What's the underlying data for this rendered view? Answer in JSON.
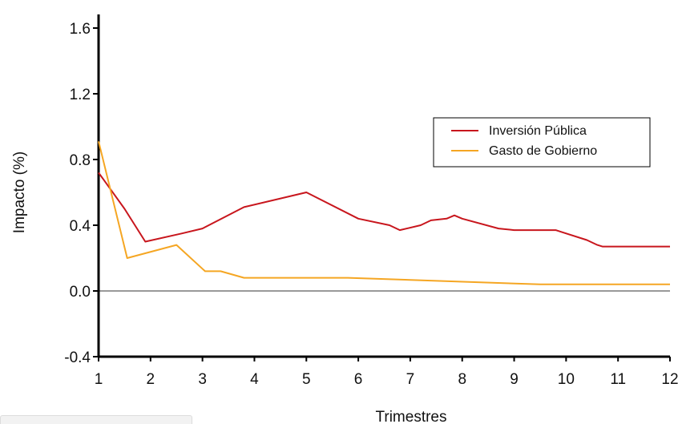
{
  "chart_data": {
    "type": "line",
    "title": "",
    "xlabel": "Trimestres",
    "ylabel": "Impacto (%)",
    "xlim": [
      1,
      12
    ],
    "ylim": [
      -0.4,
      1.6
    ],
    "xticks": [
      1,
      2,
      3,
      4,
      5,
      6,
      7,
      8,
      9,
      10,
      11,
      12
    ],
    "yticks": [
      -0.4,
      0.0,
      0.4,
      0.8,
      1.2,
      1.6
    ],
    "ytick_labels": [
      "-0.4",
      "0.0",
      "0.4",
      "0.8",
      "1.2",
      "1.6"
    ],
    "legend_position": "top-right",
    "zero_line": true,
    "series": [
      {
        "name": "Inversión Pública",
        "color": "#c8161d",
        "x": [
          1,
          1.5,
          1.9,
          2.6,
          3.0,
          3.8,
          5.0,
          6.0,
          6.6,
          6.8,
          7.2,
          7.4,
          7.7,
          7.85,
          8.0,
          8.7,
          9.0,
          9.8,
          9.9,
          10.4,
          10.6,
          10.7,
          12
        ],
        "y": [
          0.72,
          0.5,
          0.3,
          0.35,
          0.38,
          0.51,
          0.6,
          0.44,
          0.4,
          0.37,
          0.4,
          0.43,
          0.44,
          0.46,
          0.44,
          0.38,
          0.37,
          0.37,
          0.36,
          0.31,
          0.28,
          0.27,
          0.27
        ]
      },
      {
        "name": "Gasto de Gobierno",
        "color": "#f5a623",
        "x": [
          1,
          1.55,
          2.5,
          3.05,
          3.35,
          3.8,
          5.0,
          5.8,
          9.5,
          12
        ],
        "y": [
          0.91,
          0.2,
          0.28,
          0.12,
          0.12,
          0.08,
          0.08,
          0.08,
          0.04,
          0.04
        ]
      }
    ]
  }
}
